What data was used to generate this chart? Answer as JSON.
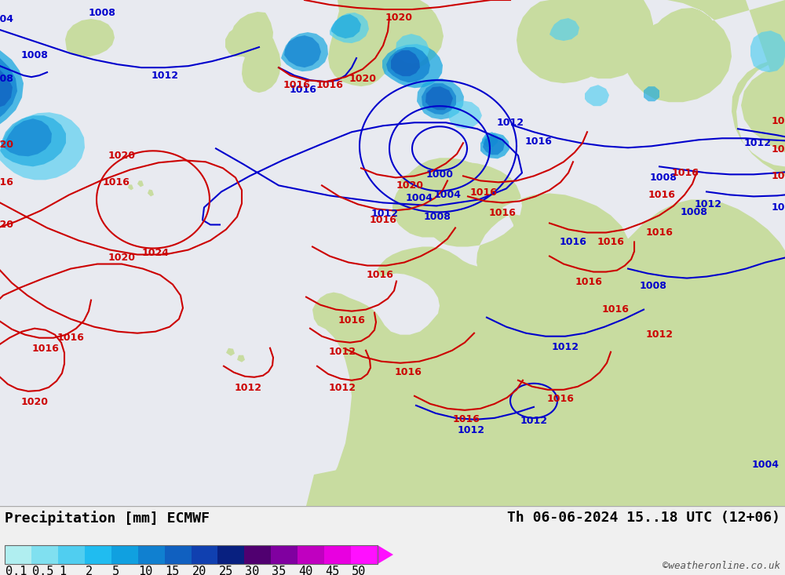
{
  "title_left": "Precipitation [mm] ECMWF",
  "title_right": "Th 06-06-2024 15..18 UTC (12+06)",
  "copyright": "©weatheronline.co.uk",
  "colorbar_labels": [
    "0.1",
    "0.5",
    "1",
    "2",
    "5",
    "10",
    "15",
    "20",
    "25",
    "30",
    "35",
    "40",
    "45",
    "50"
  ],
  "colorbar_colors": [
    "#b0eef0",
    "#80e0f0",
    "#50cef0",
    "#20bcf0",
    "#10a0e0",
    "#1080d0",
    "#1060c0",
    "#1040b0",
    "#082080",
    "#500070",
    "#8000a0",
    "#c000c0",
    "#e800e0",
    "#ff10ff"
  ],
  "ocean_color": "#e8eaf0",
  "land_color": "#c8dca0",
  "bg_color": "#f0f0f0",
  "blue_isobar_color": "#0000cc",
  "red_isobar_color": "#cc0000",
  "label_fontsize": 13,
  "tick_fontsize": 11,
  "isobar_fontsize": 9,
  "isobar_lw": 1.5
}
